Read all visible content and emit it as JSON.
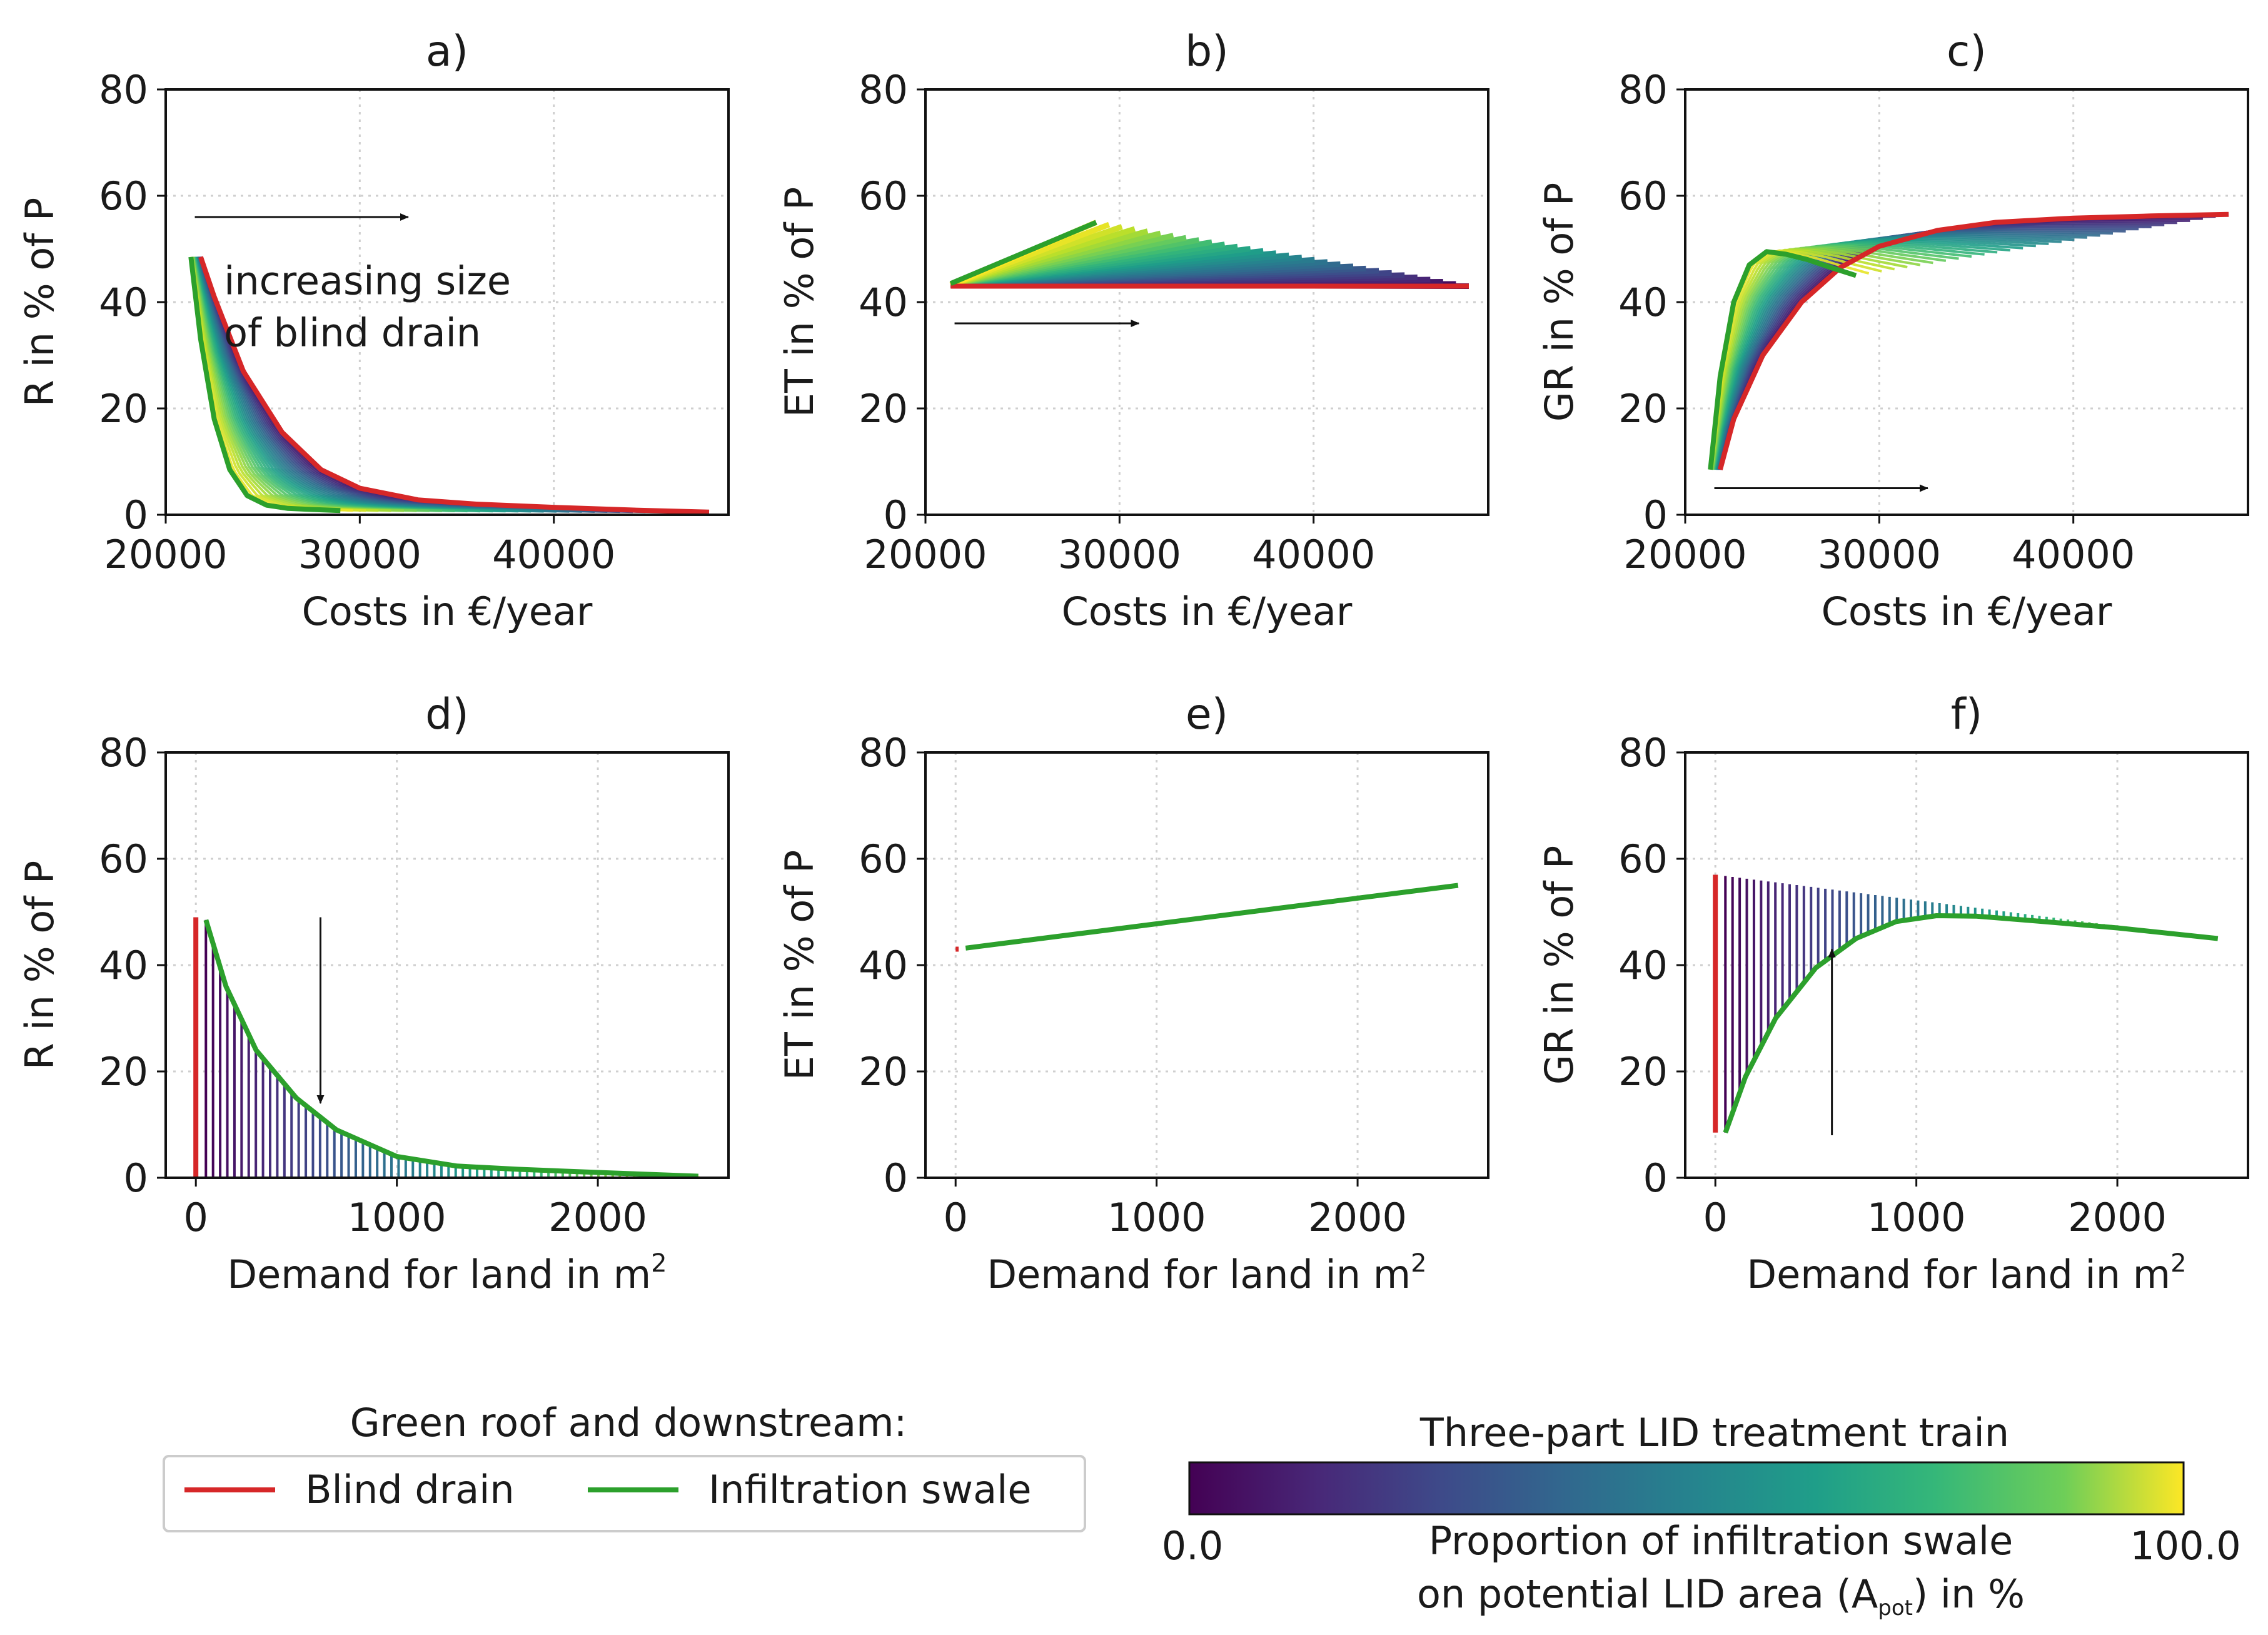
{
  "chart_data": [
    {
      "id": "a",
      "type": "line",
      "title": "a)",
      "xlabel": "Costs in €/year",
      "ylabel": "R in % of P",
      "xlim": [
        20000,
        49000
      ],
      "ylim": [
        0,
        80
      ],
      "xticks": [
        20000,
        30000,
        40000
      ],
      "yticks": [
        0,
        20,
        40,
        60,
        80
      ],
      "grid": true,
      "family": "decay",
      "series": [
        {
          "name": "Blind drain",
          "color": "#d62728",
          "x": [
            21800,
            22500,
            24000,
            26000,
            28000,
            30000,
            33000,
            36000,
            40000,
            44000,
            48000
          ],
          "y": [
            48.5,
            41,
            27,
            15.5,
            8.5,
            5,
            2.8,
            2,
            1.4,
            0.9,
            0.5
          ]
        },
        {
          "name": "Infiltration swale",
          "color": "#2ca02c",
          "x": [
            21300,
            21800,
            22500,
            23300,
            24200,
            25200,
            26300,
            27500,
            29000
          ],
          "y": [
            48.5,
            33,
            18,
            8.5,
            3.6,
            1.8,
            1.2,
            1.0,
            0.8
          ]
        }
      ],
      "annotations": [
        {
          "text_lines": [
            "increasing size",
            "of blind drain"
          ],
          "arrow": {
            "from": [
              21500,
              56
            ],
            "to": [
              32500,
              56
            ]
          }
        }
      ]
    },
    {
      "id": "b",
      "type": "line",
      "title": "b)",
      "xlabel": "Costs in €/year",
      "ylabel": "ET in % of P",
      "xlim": [
        20000,
        49000
      ],
      "ylim": [
        0,
        80
      ],
      "xticks": [
        20000,
        30000,
        40000
      ],
      "yticks": [
        0,
        20,
        40,
        60,
        80
      ],
      "grid": true,
      "family": "triangle",
      "series": [
        {
          "name": "Blind drain",
          "color": "#d62728",
          "x": [
            21300,
            48000
          ],
          "y": [
            43,
            43
          ]
        },
        {
          "name": "Infiltration swale",
          "color": "#2ca02c",
          "x": [
            21300,
            28800
          ],
          "y": [
            43.5,
            55
          ]
        }
      ],
      "annotations": [
        {
          "arrow": {
            "from": [
              21500,
              36
            ],
            "to": [
              31000,
              36
            ]
          }
        }
      ]
    },
    {
      "id": "c",
      "type": "line",
      "title": "c)",
      "xlabel": "Costs in €/year",
      "ylabel": "GR in % of P",
      "xlim": [
        20000,
        49000
      ],
      "ylim": [
        0,
        80
      ],
      "xticks": [
        20000,
        30000,
        40000
      ],
      "yticks": [
        0,
        20,
        40,
        60,
        80
      ],
      "grid": true,
      "family": "rise",
      "series": [
        {
          "name": "Blind drain",
          "color": "#d62728",
          "x": [
            21800,
            22500,
            24000,
            26000,
            28000,
            30000,
            33000,
            36000,
            40000,
            44000,
            48000
          ],
          "y": [
            8.5,
            18,
            30,
            40,
            46.5,
            50.5,
            53.5,
            55,
            55.8,
            56.2,
            56.5
          ]
        },
        {
          "name": "Infiltration swale",
          "color": "#2ca02c",
          "x": [
            21300,
            21800,
            22500,
            23300,
            24200,
            25200,
            26300,
            27500,
            28800
          ],
          "y": [
            8.5,
            26,
            40,
            47,
            49.5,
            49,
            48,
            46.5,
            45
          ]
        }
      ],
      "annotations": [
        {
          "arrow": {
            "from": [
              21500,
              5
            ],
            "to": [
              32500,
              5
            ]
          }
        }
      ]
    },
    {
      "id": "d",
      "type": "line",
      "title": "d)",
      "xlabel": "Demand for land in m",
      "xlabel_sup": "2",
      "ylabel": "R in % of P",
      "xlim": [
        -150,
        2650
      ],
      "ylim": [
        0,
        80
      ],
      "xticks": [
        0,
        1000,
        2000
      ],
      "yticks": [
        0,
        20,
        40,
        60,
        80
      ],
      "grid": true,
      "family": "bars_decay",
      "series": [
        {
          "name": "Blind drain",
          "color": "#d62728",
          "x": [
            0,
            0
          ],
          "y": [
            0,
            49
          ]
        },
        {
          "name": "Infiltration swale",
          "color": "#2ca02c",
          "x": [
            50,
            150,
            300,
            500,
            700,
            1000,
            1300,
            1600,
            2000,
            2500
          ],
          "y": [
            48.5,
            36,
            24,
            15,
            9,
            4,
            2.2,
            1.6,
            1.0,
            0.3
          ]
        }
      ],
      "annotations": [
        {
          "arrow": {
            "from": [
              620,
              49
            ],
            "to": [
              620,
              14
            ]
          }
        }
      ]
    },
    {
      "id": "e",
      "type": "line",
      "title": "e)",
      "xlabel": "Demand for land in m",
      "xlabel_sup": "2",
      "ylabel": "ET in % of P",
      "xlim": [
        -150,
        2650
      ],
      "ylim": [
        0,
        80
      ],
      "xticks": [
        0,
        1000,
        2000
      ],
      "yticks": [
        0,
        20,
        40,
        60,
        80
      ],
      "grid": true,
      "family": "plain",
      "series": [
        {
          "name": "Blind drain",
          "color": "#d62728",
          "x": [
            0,
            15
          ],
          "y": [
            43,
            43
          ]
        },
        {
          "name": "Infiltration swale",
          "color": "#2ca02c",
          "x": [
            50,
            2500
          ],
          "y": [
            43.2,
            55
          ]
        }
      ],
      "annotations": []
    },
    {
      "id": "f",
      "type": "line",
      "title": "f)",
      "xlabel": "Demand for land in m",
      "xlabel_sup": "2",
      "ylabel": "GR in % of P",
      "xlim": [
        -150,
        2650
      ],
      "ylim": [
        0,
        80
      ],
      "xticks": [
        0,
        1000,
        2000
      ],
      "yticks": [
        0,
        20,
        40,
        60,
        80
      ],
      "grid": true,
      "family": "bars_rise",
      "series": [
        {
          "name": "Blind drain",
          "color": "#d62728",
          "x": [
            0,
            0
          ],
          "y": [
            8.5,
            57
          ]
        },
        {
          "name": "Infiltration swale",
          "color": "#2ca02c",
          "x": [
            50,
            150,
            300,
            500,
            700,
            900,
            1100,
            1300,
            1600,
            2000,
            2500
          ],
          "y": [
            8.5,
            19,
            30,
            39.5,
            45,
            48.2,
            49.3,
            49.2,
            48.3,
            47,
            45
          ]
        }
      ],
      "annotations": [
        {
          "arrow": {
            "from": [
              580,
              8
            ],
            "to": [
              580,
              43
            ]
          }
        }
      ]
    }
  ],
  "legend": {
    "title": "Green roof and downstream:",
    "entries": [
      {
        "label": "Blind drain",
        "color": "#d62728"
      },
      {
        "label": "Infiltration swale",
        "color": "#2ca02c"
      }
    ]
  },
  "colorbar": {
    "title": "Three-part LID treatment train",
    "colormap": "viridis",
    "min_label": "0.0",
    "max_label": "100.0",
    "label_line1": "Proportion of infiltration swale",
    "label_line2_pre": "on potential LID area (A",
    "label_line2_sub": "pot",
    "label_line2_post": ") in %"
  }
}
